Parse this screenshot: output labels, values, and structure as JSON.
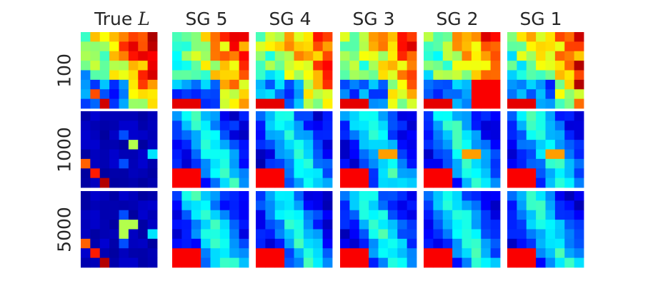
{
  "column_titles": [
    {
      "text": "True ",
      "italic": "L"
    },
    {
      "text": "SG 5"
    },
    {
      "text": "SG 4"
    },
    {
      "text": "SG 3"
    },
    {
      "text": "SG 2"
    },
    {
      "text": "SG 1"
    }
  ],
  "row_labels": [
    "100",
    "1000",
    "5000"
  ],
  "colormap": "jet",
  "grid_size": 8
}
